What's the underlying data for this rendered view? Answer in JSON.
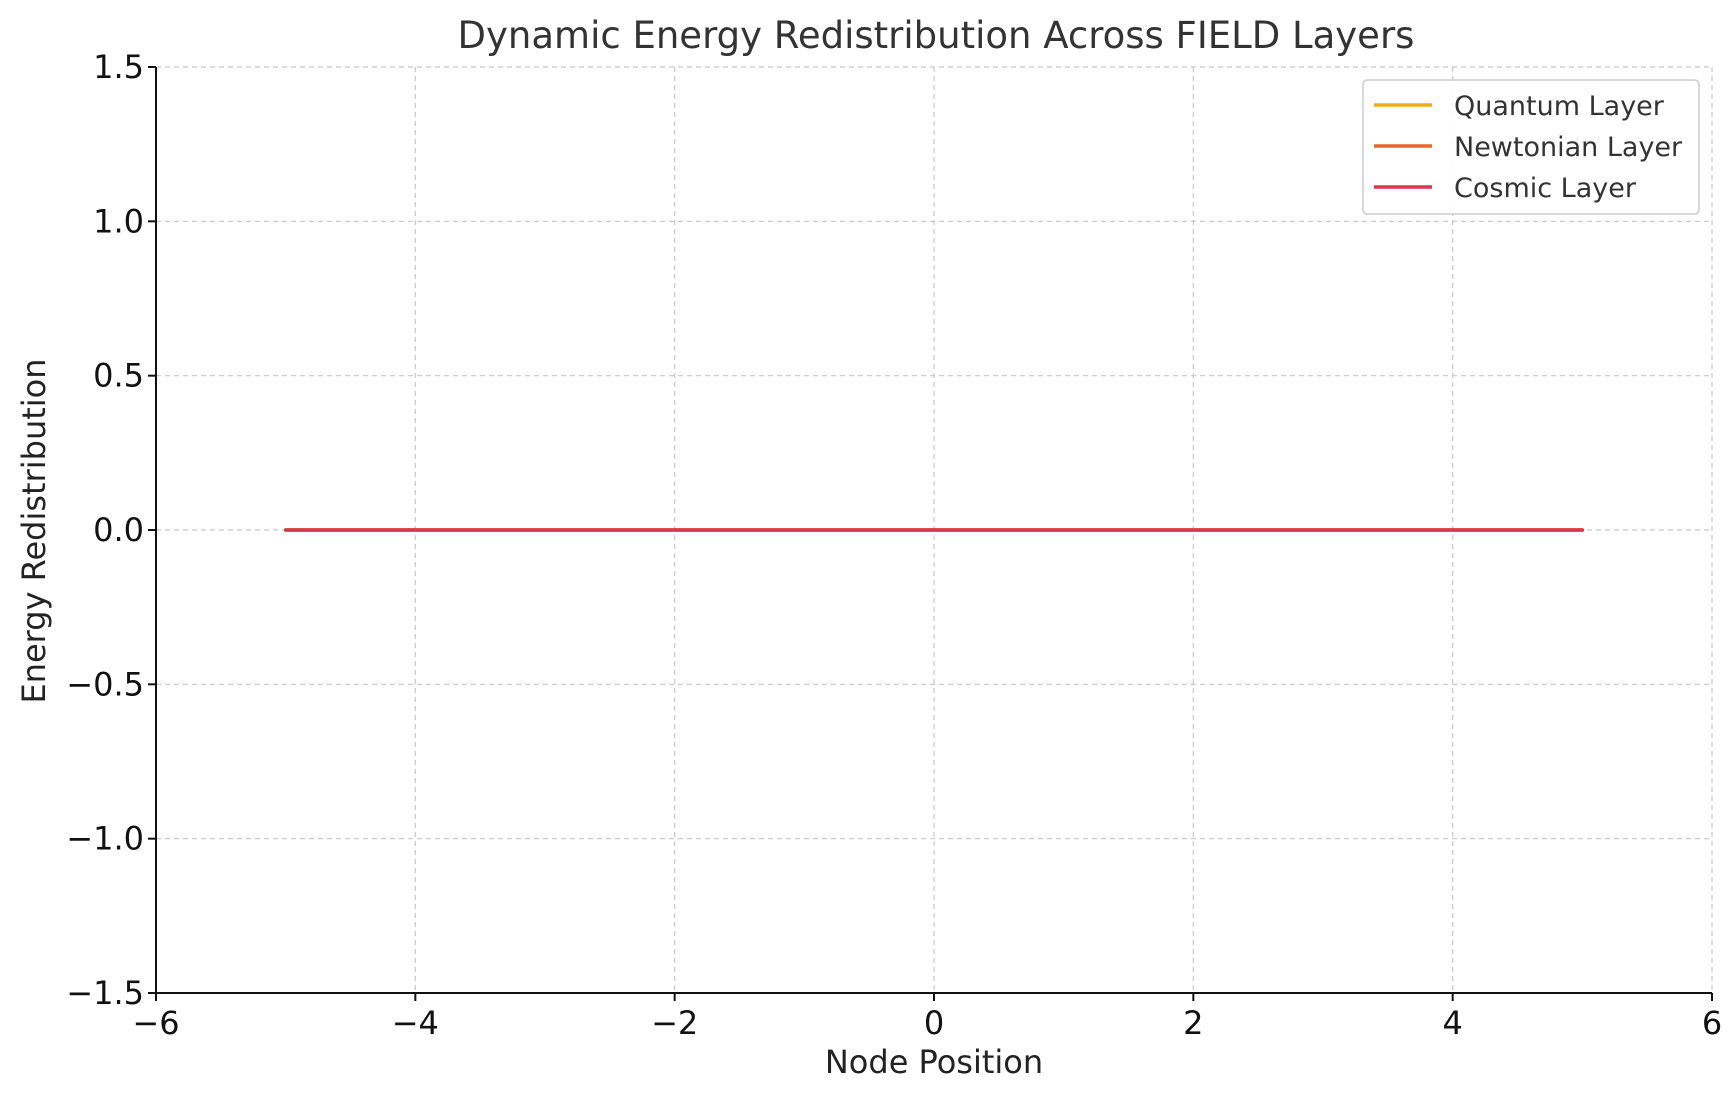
{
  "chart_data": {
    "type": "line",
    "title": "Dynamic Energy Redistribution Across FIELD Layers",
    "xlabel": "Node Position",
    "ylabel": "Energy Redistribution",
    "xlim": [
      -6,
      6
    ],
    "ylim": [
      -1.5,
      1.5
    ],
    "grid": true,
    "legend_position": "top-right",
    "x_ticks": [
      -6,
      -4,
      -2,
      0,
      2,
      4,
      6
    ],
    "x_tick_labels": [
      "−6",
      "−4",
      "−2",
      "0",
      "2",
      "4",
      "6"
    ],
    "y_ticks": [
      -1.5,
      -1.0,
      -0.5,
      0.0,
      0.5,
      1.0,
      1.5
    ],
    "y_tick_labels": [
      "−1.5",
      "−1.0",
      "−0.5",
      "0.0",
      "0.5",
      "1.0",
      "1.5"
    ],
    "x": [
      -5,
      -4,
      -3,
      -2,
      -1,
      0,
      1,
      2,
      3,
      4,
      5
    ],
    "series": [
      {
        "name": "Quantum Layer",
        "color": "#f0ad1c",
        "values": [
          0,
          0,
          0,
          0,
          0,
          0,
          0,
          0,
          0,
          0,
          0
        ]
      },
      {
        "name": "Newtonian Layer",
        "color": "#e8682a",
        "values": [
          0,
          0,
          0,
          0,
          0,
          0,
          0,
          0,
          0,
          0,
          0
        ]
      },
      {
        "name": "Cosmic Layer",
        "color": "#dc3550",
        "values": [
          0,
          0,
          0,
          0,
          0,
          0,
          0,
          0,
          0,
          0,
          0
        ]
      }
    ]
  }
}
